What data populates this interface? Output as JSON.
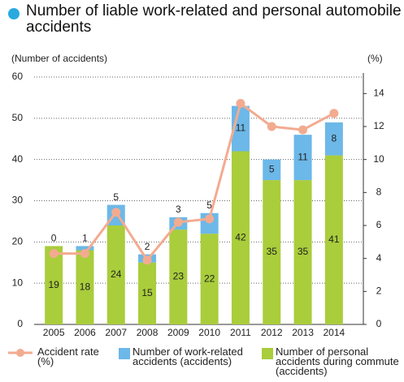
{
  "chart_data": {
    "type": "bar",
    "title": "Number of liable work-related and personal automobile accidents",
    "y_label": "(Number of accidents)",
    "y2_label": "(%)",
    "categories": [
      "2005",
      "2006",
      "2007",
      "2008",
      "2009",
      "2010",
      "2011",
      "2012",
      "2013",
      "2014"
    ],
    "stacked": true,
    "grid": true,
    "series": [
      {
        "name": "Number of personal accidents during commute (accidents)",
        "color": "#a9cd3b",
        "values": [
          19,
          18,
          24,
          15,
          23,
          22,
          42,
          35,
          35,
          41
        ]
      },
      {
        "name": "Number of work-related accidents (accidents)",
        "color": "#6cb8e8",
        "values": [
          0,
          1,
          5,
          2,
          3,
          5,
          11,
          5,
          11,
          8
        ]
      },
      {
        "name": "Accident rate (%)",
        "color": "#f3ab90",
        "type": "line",
        "axis": "y2",
        "values": [
          4.3,
          4.3,
          6.8,
          3.9,
          6.2,
          6.4,
          13.4,
          12.0,
          11.8,
          12.8
        ]
      }
    ],
    "ylim": [
      0,
      60
    ],
    "yticks": [
      0,
      10,
      20,
      30,
      40,
      50,
      60
    ],
    "y2lim": [
      0,
      15
    ],
    "y2ticks": [
      0,
      2,
      4,
      6,
      8,
      10,
      12,
      14
    ]
  }
}
